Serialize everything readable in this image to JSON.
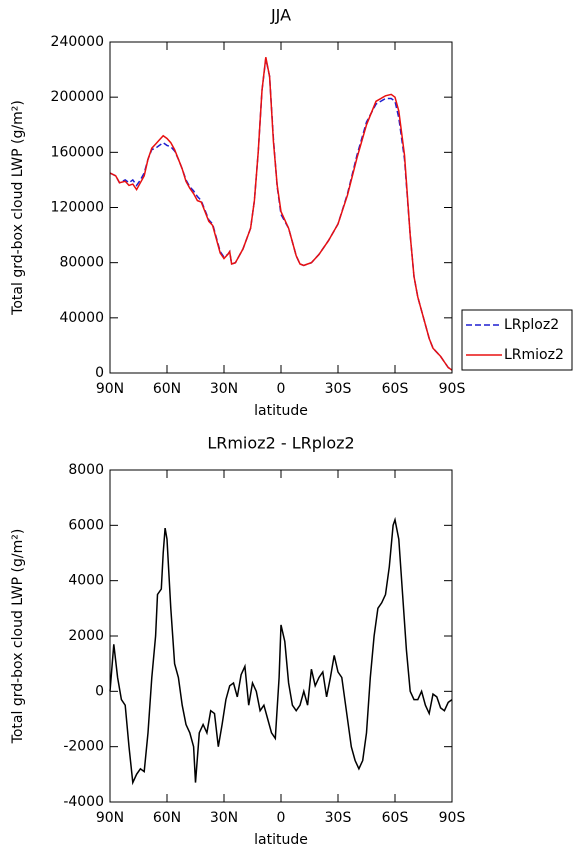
{
  "chart_data": [
    {
      "type": "line",
      "title": "JJA",
      "xlabel": "latitude",
      "ylabel": "Total grd-box cloud LWP (g/m²)",
      "x": [
        90,
        87,
        85,
        82,
        80,
        78,
        76,
        74,
        72,
        70,
        68,
        66,
        64,
        62,
        60,
        58,
        56,
        54,
        52,
        50,
        48,
        46,
        44,
        42,
        40,
        38,
        36,
        34,
        32,
        30,
        28,
        27,
        26,
        24,
        22,
        20,
        16,
        14,
        12,
        10,
        8,
        6,
        4,
        2,
        0,
        -2,
        -4,
        -6,
        -8,
        -10,
        -12,
        -14,
        -16,
        -20,
        -25,
        -30,
        -35,
        -40,
        -45,
        -50,
        -55,
        -58,
        -60,
        -62,
        -65,
        -68,
        -70,
        -72,
        -75,
        -78,
        -80,
        -84,
        -86,
        -88,
        -90
      ],
      "series": [
        {
          "name": "LRploz2",
          "color": "#1f1fd0",
          "dash": "dashed",
          "values": [
            145000,
            143000,
            138000,
            140000,
            138000,
            140000,
            136000,
            140000,
            145000,
            155000,
            162000,
            163000,
            165000,
            167000,
            165000,
            164000,
            161000,
            155000,
            148000,
            140000,
            135000,
            132000,
            128000,
            125000,
            118000,
            111000,
            108000,
            98000,
            88000,
            84000,
            86000,
            88000,
            79000,
            80000,
            85000,
            90000,
            105000,
            125000,
            160000,
            205000,
            228000,
            215000,
            170000,
            135000,
            115000,
            110000,
            105000,
            95000,
            85000,
            79000,
            78000,
            79000,
            80000,
            86000,
            96000,
            108000,
            130000,
            158000,
            182000,
            195000,
            199000,
            199000,
            197000,
            185000,
            155000,
            100000,
            70000,
            55000,
            40000,
            25000,
            18000,
            12000,
            8000,
            4000,
            2000
          ]
        },
        {
          "name": "LRmioz2",
          "color": "#e81010",
          "dash": "solid",
          "values": [
            145000,
            143000,
            138000,
            139000,
            136000,
            137000,
            133000,
            138000,
            143000,
            155000,
            163000,
            166000,
            169000,
            172000,
            170000,
            167000,
            162000,
            155000,
            148000,
            139000,
            134000,
            130000,
            125000,
            124000,
            117000,
            110000,
            107000,
            97000,
            87000,
            83000,
            86000,
            88000,
            79000,
            80000,
            85000,
            90000,
            105000,
            125000,
            160000,
            205000,
            229000,
            215000,
            168000,
            136000,
            117000,
            111000,
            105000,
            95000,
            85000,
            79000,
            78000,
            79000,
            80000,
            86000,
            96000,
            108000,
            129000,
            156000,
            180000,
            197000,
            201000,
            202000,
            200000,
            190000,
            158000,
            100000,
            70000,
            55000,
            40000,
            25000,
            18000,
            12000,
            8000,
            4000,
            2000
          ]
        }
      ],
      "xlim": [
        90,
        -90
      ],
      "xticks": [
        {
          "value": 90,
          "label": "90N"
        },
        {
          "value": 60,
          "label": "60N"
        },
        {
          "value": 30,
          "label": "30N"
        },
        0,
        {
          "value": -30,
          "label": "30S"
        },
        {
          "value": -60,
          "label": "60S"
        },
        {
          "value": -90,
          "label": "90S"
        }
      ],
      "ylim": [
        0,
        240000
      ],
      "yticks": [
        0,
        40000,
        80000,
        120000,
        160000,
        200000,
        240000
      ],
      "legend": "right"
    },
    {
      "type": "line",
      "title": "LRmioz2 - LRploz2",
      "xlabel": "latitude",
      "ylabel": "Total grd-box cloud LWP (g/m²)",
      "x": [
        90,
        88,
        86,
        84,
        82,
        80,
        78,
        76,
        74,
        72,
        70,
        68,
        66,
        65,
        63,
        62,
        61,
        60,
        58,
        56,
        54,
        52,
        50,
        48,
        46,
        45,
        43,
        41,
        39,
        37,
        35,
        33,
        31,
        29,
        27,
        25,
        23,
        21,
        19,
        17,
        15,
        13,
        11,
        9,
        7,
        5,
        3,
        1,
        0,
        -2,
        -4,
        -6,
        -8,
        -10,
        -12,
        -14,
        -16,
        -18,
        -20,
        -22,
        -24,
        -26,
        -28,
        -30,
        -32,
        -34,
        -36,
        -37,
        -39,
        -41,
        -43,
        -45,
        -47,
        -49,
        -51,
        -53,
        -55,
        -57,
        -59,
        -60,
        -62,
        -64,
        -66,
        -68,
        -70,
        -72,
        -74,
        -76,
        -78,
        -80,
        -82,
        -84,
        -86,
        -88,
        -90
      ],
      "series": [
        {
          "name": null,
          "color": "#000000",
          "dash": "solid",
          "values": [
            0,
            1700,
            500,
            -300,
            -500,
            -2000,
            -3300,
            -3000,
            -2800,
            -2900,
            -1500,
            500,
            2000,
            3500,
            3700,
            5000,
            5900,
            5500,
            3000,
            1000,
            500,
            -500,
            -1200,
            -1500,
            -2000,
            -3300,
            -1500,
            -1200,
            -1500,
            -700,
            -800,
            -2000,
            -1200,
            -300,
            200,
            300,
            -200,
            600,
            900,
            -500,
            300,
            0,
            -700,
            -500,
            -1000,
            -1500,
            -1700,
            500,
            2400,
            1800,
            300,
            -500,
            -700,
            -500,
            0,
            -500,
            800,
            200,
            500,
            700,
            -200,
            500,
            1300,
            700,
            500,
            -500,
            -1500,
            -2000,
            -2500,
            -2800,
            -2500,
            -1500,
            500,
            2000,
            3000,
            3200,
            3500,
            4500,
            6000,
            6200,
            5500,
            3500,
            1500,
            0,
            -300,
            -300,
            0,
            -500,
            -800,
            -100,
            -200,
            -600,
            -700,
            -400,
            -300
          ]
        }
      ],
      "xlim": [
        90,
        -90
      ],
      "xticks": [
        {
          "value": 90,
          "label": "90N"
        },
        {
          "value": 60,
          "label": "60N"
        },
        {
          "value": 30,
          "label": "30N"
        },
        0,
        {
          "value": -30,
          "label": "30S"
        },
        {
          "value": -60,
          "label": "60S"
        },
        {
          "value": -90,
          "label": "90S"
        }
      ],
      "ylim": [
        -4000,
        8000
      ],
      "yticks": [
        -4000,
        -2000,
        0,
        2000,
        4000,
        6000,
        8000
      ]
    }
  ]
}
